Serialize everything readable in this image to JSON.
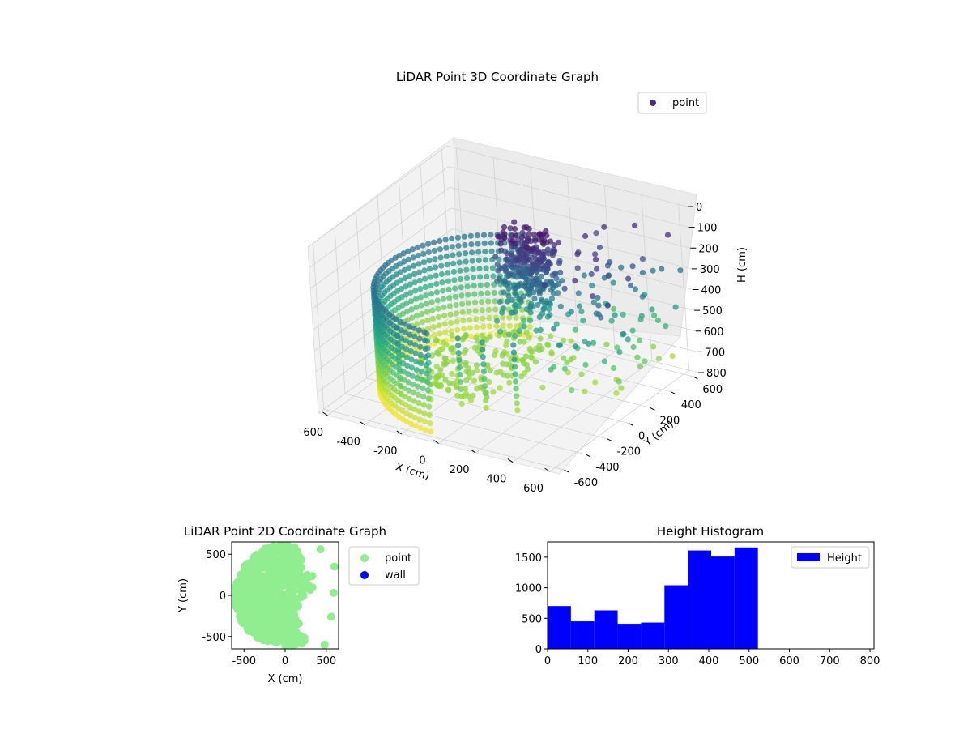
{
  "chart_data": [
    {
      "type": "scatter",
      "projection": "3d",
      "title": "LiDAR Point 3D Coordinate Graph",
      "xlabel": "X (cm)",
      "ylabel": "Y (cm)",
      "zlabel": "H (cm)",
      "xlim": [
        -650,
        650
      ],
      "ylim": [
        -650,
        650
      ],
      "zlim": [
        0,
        800
      ],
      "z_inverted": true,
      "xticks": [
        -600,
        -400,
        -200,
        0,
        200,
        400,
        600
      ],
      "yticks": [
        -600,
        -400,
        -200,
        0,
        200,
        400,
        600
      ],
      "zticks": [
        0,
        100,
        200,
        300,
        400,
        500,
        600,
        700,
        800
      ],
      "colormap": "viridis",
      "grid": true,
      "legend": {
        "position": "top-right",
        "entries": [
          {
            "label": "point",
            "color": "#472c7a"
          }
        ]
      },
      "series": [
        {
          "name": "point",
          "shape": {
            "wall_ring": {
              "radius": 600,
              "angle_deg": [
                110,
                265
              ],
              "h_range": [
                300,
                780
              ]
            },
            "floor_disc": {
              "radius": 420,
              "h": 650
            },
            "central_cluster": {
              "center": [
                80,
                120
              ],
              "h_range": [
                20,
                300
              ]
            },
            "scattered_right": {
              "x_range": [
                200,
                650
              ],
              "y_range": [
                -200,
                600
              ],
              "h_range": [
                100,
                700
              ]
            },
            "posts": [
              [
                -150,
                -450
              ],
              [
                0,
                -420
              ],
              [
                120,
                -400
              ],
              [
                260,
                -350
              ],
              [
                -300,
                -470
              ]
            ]
          }
        }
      ]
    },
    {
      "type": "scatter",
      "title": "LiDAR Point 2D Coordinate Graph",
      "xlabel": "X (cm)",
      "ylabel": "Y (cm)",
      "xlim": [
        -650,
        650
      ],
      "ylim": [
        -650,
        650
      ],
      "xticks": [
        -500,
        0,
        500
      ],
      "yticks": [
        -500,
        0,
        500
      ],
      "legend": {
        "position": "outside-right",
        "entries": [
          {
            "label": "point",
            "color": "#90ee90"
          },
          {
            "label": "wall",
            "color": "#0000ff"
          }
        ]
      },
      "series": [
        {
          "name": "point",
          "color": "#90ee90",
          "shape": "half-disc covering left side with irregular right edge"
        },
        {
          "name": "wall",
          "color": "#0000ff",
          "shape": "hidden under points"
        }
      ]
    },
    {
      "type": "bar",
      "subtype": "histogram",
      "title": "Height Histogram",
      "xlim": [
        0,
        810
      ],
      "ylim": [
        0,
        1750
      ],
      "xticks": [
        0,
        100,
        200,
        300,
        400,
        500,
        600,
        700,
        800
      ],
      "yticks": [
        0,
        500,
        1000,
        1500
      ],
      "legend": {
        "position": "top-right",
        "entries": [
          {
            "label": "Height",
            "color": "#0000ff"
          }
        ]
      },
      "series": [
        {
          "name": "Height",
          "color": "#0000ff",
          "bin_edges": [
            0,
            58,
            116,
            174,
            232,
            290,
            348,
            406,
            464,
            522
          ],
          "values": [
            700,
            450,
            630,
            410,
            430,
            1040,
            1610,
            1510,
            1660
          ]
        }
      ]
    }
  ]
}
